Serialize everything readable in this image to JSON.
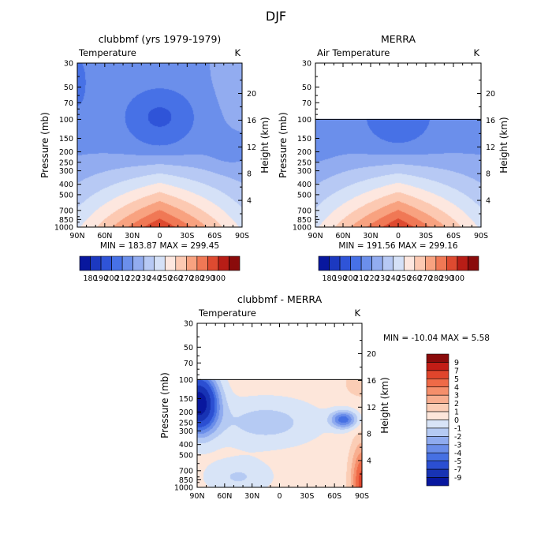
{
  "figure_title": "DJF",
  "panels": [
    {
      "title": "clubbmf (yrs 1979-1979)",
      "field_label": "Temperature",
      "unit_label": "K",
      "ylabel_left": "Pressure (mb)",
      "ylabel_right": "Height (km)",
      "minmax_text": "MIN = 183.87   MAX = 299.45"
    },
    {
      "title": "MERRA",
      "field_label": "Air Temperature",
      "unit_label": "K",
      "ylabel_left": "Pressure (mb)",
      "ylabel_right": "Height (km)",
      "minmax_text": "MIN = 191.56   MAX = 299.16"
    },
    {
      "title": "clubbmf - MERRA",
      "field_label": "Temperature",
      "unit_label": "K",
      "ylabel_left": "Pressure (mb)",
      "ylabel_right": "Height (km)",
      "minmax_text": "MIN = -10.04   MAX =    5.58"
    }
  ],
  "axes": {
    "x_ticks": [
      "90N",
      "60N",
      "30N",
      "0",
      "30S",
      "60S",
      "90S"
    ],
    "pressure_ticks": [
      "30",
      "50",
      "70",
      "100",
      "150",
      "200",
      "250",
      "300",
      "400",
      "500",
      "700",
      "850",
      "1000"
    ],
    "pressure_tick_values": [
      30,
      50,
      70,
      100,
      150,
      200,
      250,
      300,
      400,
      500,
      700,
      850,
      1000
    ],
    "height_ticks": [
      "4",
      "8",
      "12",
      "16",
      "20"
    ],
    "height_tick_values": [
      4,
      8,
      12,
      16,
      20
    ],
    "pressure_range": [
      30,
      1000
    ],
    "latitude_range": [
      90,
      -90
    ]
  },
  "colorbar_temp": {
    "labels": [
      "180",
      "190",
      "200",
      "210",
      "220",
      "230",
      "240",
      "250",
      "260",
      "270",
      "280",
      "290",
      "300"
    ],
    "colors": [
      "#08179e",
      "#1c39c0",
      "#2f54d8",
      "#4771e6",
      "#6b8feb",
      "#92acf0",
      "#b7c9f4",
      "#d5e1f7",
      "#fde7df",
      "#fcc9b2",
      "#f8a280",
      "#f07855",
      "#de4a30",
      "#b81d16",
      "#8a0b0b"
    ]
  },
  "colorbar_diff": {
    "labels": [
      "9",
      "7",
      "5",
      "4",
      "3",
      "2",
      "1",
      "0",
      "-1",
      "-2",
      "-3",
      "-4",
      "-5",
      "-7",
      "-9"
    ],
    "colors": [
      "#8a0b0b",
      "#c21d16",
      "#e0452c",
      "#ef6a47",
      "#f58f6b",
      "#f8ae8f",
      "#fbcdb5",
      "#fde6da",
      "#d8e4f7",
      "#b5caf3",
      "#8fabef",
      "#6a8de9",
      "#4670e3",
      "#2b4fd2",
      "#1733b4",
      "#08179e"
    ]
  },
  "chart_data": [
    {
      "type": "heatmap",
      "title": "clubbmf (yrs 1979-1979)",
      "field": "Temperature",
      "unit": "K",
      "x_axis": "latitude",
      "y_axis": "pressure (mb)",
      "x_ticks": [
        "90N",
        "60N",
        "30N",
        "0",
        "30S",
        "60S",
        "90S"
      ],
      "ylim": [
        1000,
        30
      ],
      "min": 183.87,
      "max": 299.45,
      "contour_levels": [
        180,
        190,
        200,
        210,
        220,
        230,
        240,
        250,
        260,
        270,
        280,
        290,
        300
      ],
      "sample_grid": {
        "latitudes": [
          90,
          60,
          30,
          0,
          -30,
          -60,
          -90
        ],
        "pressures": [
          30,
          100,
          200,
          300,
          500,
          850,
          1000
        ],
        "values": [
          [
            200,
            222,
            208,
            206,
            208,
            226,
            232
          ],
          [
            212,
            220,
            196,
            192,
            198,
            221,
            231
          ],
          [
            217,
            219,
            212,
            212,
            212,
            218,
            224
          ],
          [
            226,
            228,
            234,
            236,
            234,
            227,
            232
          ],
          [
            243,
            250,
            262,
            265,
            262,
            248,
            246
          ],
          [
            254,
            270,
            288,
            292,
            288,
            268,
            256
          ],
          [
            258,
            274,
            294,
            299,
            294,
            272,
            262
          ]
        ]
      }
    },
    {
      "type": "heatmap",
      "title": "MERRA",
      "field": "Air Temperature",
      "unit": "K",
      "x_axis": "latitude",
      "y_axis": "pressure (mb)",
      "x_ticks": [
        "90N",
        "60N",
        "30N",
        "0",
        "30S",
        "60S",
        "90S"
      ],
      "ylim": [
        1000,
        30
      ],
      "data_top_pressure": 100,
      "min": 191.56,
      "max": 299.16,
      "contour_levels": [
        180,
        190,
        200,
        210,
        220,
        230,
        240,
        250,
        260,
        270,
        280,
        290,
        300
      ],
      "sample_grid": {
        "latitudes": [
          90,
          60,
          30,
          0,
          -30,
          -60,
          -90
        ],
        "pressures": [
          100,
          200,
          300,
          500,
          850,
          1000
        ],
        "values": [
          [
            208,
            210,
            200,
            196,
            200,
            212,
            216
          ],
          [
            214,
            216,
            212,
            212,
            212,
            216,
            220
          ],
          [
            226,
            228,
            234,
            236,
            234,
            228,
            228
          ],
          [
            243,
            250,
            262,
            265,
            262,
            250,
            246
          ],
          [
            254,
            270,
            288,
            292,
            288,
            270,
            256
          ],
          [
            258,
            274,
            294,
            299,
            294,
            274,
            262
          ]
        ]
      }
    },
    {
      "type": "heatmap",
      "title": "clubbmf - MERRA",
      "field": "Temperature",
      "unit": "K",
      "x_axis": "latitude",
      "y_axis": "pressure (mb)",
      "x_ticks": [
        "90N",
        "60N",
        "30N",
        "0",
        "30S",
        "60S",
        "90S"
      ],
      "ylim": [
        1000,
        30
      ],
      "data_top_pressure": 100,
      "min": -10.04,
      "max": 5.58,
      "contour_levels": [
        -9,
        -7,
        -5,
        -4,
        -3,
        -2,
        -1,
        0,
        1,
        2,
        3,
        4,
        5,
        7,
        9
      ],
      "sample_grid": {
        "latitudes": [
          90,
          60,
          30,
          0,
          -30,
          -60,
          -90
        ],
        "pressures": [
          100,
          200,
          300,
          500,
          850,
          1000
        ],
        "values": [
          [
            -9,
            0.5,
            0.5,
            0.5,
            0.5,
            0.5,
            2
          ],
          [
            -8,
            -1,
            0.5,
            -0.5,
            0.5,
            -1,
            -3
          ],
          [
            -4,
            -0.5,
            -0.5,
            0.5,
            -1,
            -2,
            -2
          ],
          [
            -0.5,
            -0.5,
            0.5,
            0.5,
            -0.5,
            0.5,
            2
          ],
          [
            -2,
            -1,
            0.5,
            0.5,
            0.5,
            0.5,
            4
          ],
          [
            -1,
            1,
            0.5,
            0.5,
            1,
            2,
            5
          ]
        ]
      }
    }
  ]
}
